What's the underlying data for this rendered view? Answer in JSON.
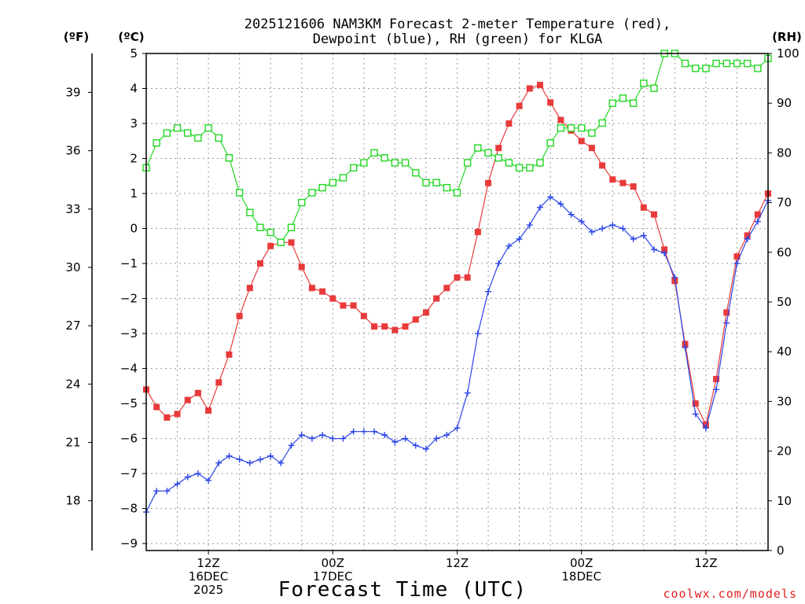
{
  "chart_data": {
    "type": "line",
    "title_line1": "2025121606 NAM3KM Forecast 2-meter Temperature (red),",
    "title_line2": "Dewpoint (blue), RH (green) for KLGA",
    "xlabel": "Forecast Time (UTC)",
    "credit": "coolwx.com/models",
    "left_unit_f": "(ºF)",
    "left_unit_c": "(ºC)",
    "right_unit": "(RH)",
    "celsius_range": [
      -9.2,
      5.0
    ],
    "rh_range": [
      0,
      100
    ],
    "celsius_ticks": [
      5,
      4,
      3,
      2,
      1,
      0,
      -1,
      -2,
      -3,
      -4,
      -5,
      -6,
      -7,
      -8,
      -9
    ],
    "celsius_tick_labels": [
      "5",
      "4",
      "3",
      "2",
      "1",
      "0",
      "−1",
      "−2",
      "−3",
      "−4",
      "−5",
      "−6",
      "−7",
      "−8",
      "−9"
    ],
    "fahrenheit_ticks": [
      39,
      36,
      33,
      30,
      27,
      24,
      21,
      18
    ],
    "fahrenheit_tick_labels": [
      "39",
      "36",
      "33",
      "30",
      "27",
      "24",
      "21",
      "18"
    ],
    "rh_ticks": [
      100,
      90,
      80,
      70,
      60,
      50,
      40,
      30,
      20,
      10,
      0
    ],
    "rh_tick_labels": [
      "100",
      "90",
      "80",
      "70",
      "60",
      "50",
      "40",
      "30",
      "20",
      "10",
      "0"
    ],
    "hour_range": [
      0,
      60
    ],
    "x_ticks": [
      {
        "hour": 6,
        "lines": [
          "12Z",
          "16DEC",
          "2025"
        ]
      },
      {
        "hour": 18,
        "lines": [
          "00Z",
          "17DEC"
        ]
      },
      {
        "hour": 30,
        "lines": [
          "12Z"
        ]
      },
      {
        "hour": 42,
        "lines": [
          "00Z",
          "18DEC"
        ]
      },
      {
        "hour": 54,
        "lines": [
          "12Z"
        ]
      }
    ],
    "series": [
      {
        "name": "2-meter Temperature",
        "units": "C",
        "color": "#e83a3a",
        "marker": "filled-square",
        "values": [
          -4.6,
          -5.1,
          -5.4,
          -5.3,
          -4.9,
          -4.7,
          -5.2,
          -4.4,
          -3.6,
          -2.5,
          -1.7,
          -1.0,
          -0.5,
          -0.4,
          -0.4,
          -1.1,
          -1.7,
          -1.8,
          -2.0,
          -2.2,
          -2.2,
          -2.5,
          -2.8,
          -2.8,
          -2.9,
          -2.8,
          -2.6,
          -2.4,
          -2.0,
          -1.7,
          -1.4,
          -1.4,
          -0.1,
          1.3,
          2.3,
          3.0,
          3.5,
          4.0,
          4.1,
          3.6,
          3.1,
          2.8,
          2.5,
          2.3,
          1.8,
          1.4,
          1.3,
          1.2,
          0.6,
          0.4,
          -0.6,
          -1.5,
          -3.3,
          -5.0,
          -5.6,
          -4.3,
          -2.4,
          -0.8,
          -0.2,
          0.4,
          1.0
        ]
      },
      {
        "name": "Dewpoint",
        "units": "C",
        "color": "#2a44e8",
        "marker": "plus",
        "values": [
          -8.1,
          -7.5,
          -7.5,
          -7.3,
          -7.1,
          -7.0,
          -7.2,
          -6.7,
          -6.5,
          -6.6,
          -6.7,
          -6.6,
          -6.5,
          -6.7,
          -6.2,
          -5.9,
          -6.0,
          -5.9,
          -6.0,
          -6.0,
          -5.8,
          -5.8,
          -5.8,
          -5.9,
          -6.1,
          -6.0,
          -6.2,
          -6.3,
          -6.0,
          -5.9,
          -5.7,
          -4.7,
          -3.0,
          -1.8,
          -1.0,
          -0.5,
          -0.3,
          0.1,
          0.6,
          0.9,
          0.7,
          0.4,
          0.2,
          -0.1,
          0.0,
          0.1,
          0.0,
          -0.3,
          -0.2,
          -0.6,
          -0.7,
          -1.4,
          -3.4,
          -5.3,
          -5.7,
          -4.6,
          -2.7,
          -1.0,
          -0.3,
          0.2,
          0.8
        ]
      },
      {
        "name": "Relative Humidity",
        "units": "%",
        "color": "#22d822",
        "marker": "open-square",
        "values": [
          77,
          82,
          84,
          85,
          84,
          83,
          85,
          83,
          79,
          72,
          68,
          65,
          64,
          62,
          65,
          70,
          72,
          73,
          74,
          75,
          77,
          78,
          80,
          79,
          78,
          78,
          76,
          74,
          74,
          73,
          72,
          78,
          81,
          80,
          79,
          78,
          77,
          77,
          78,
          82,
          85,
          85,
          85,
          84,
          86,
          90,
          91,
          90,
          94,
          93,
          100,
          100,
          98,
          97,
          97,
          98,
          98,
          98,
          98,
          97,
          99
        ]
      }
    ]
  }
}
